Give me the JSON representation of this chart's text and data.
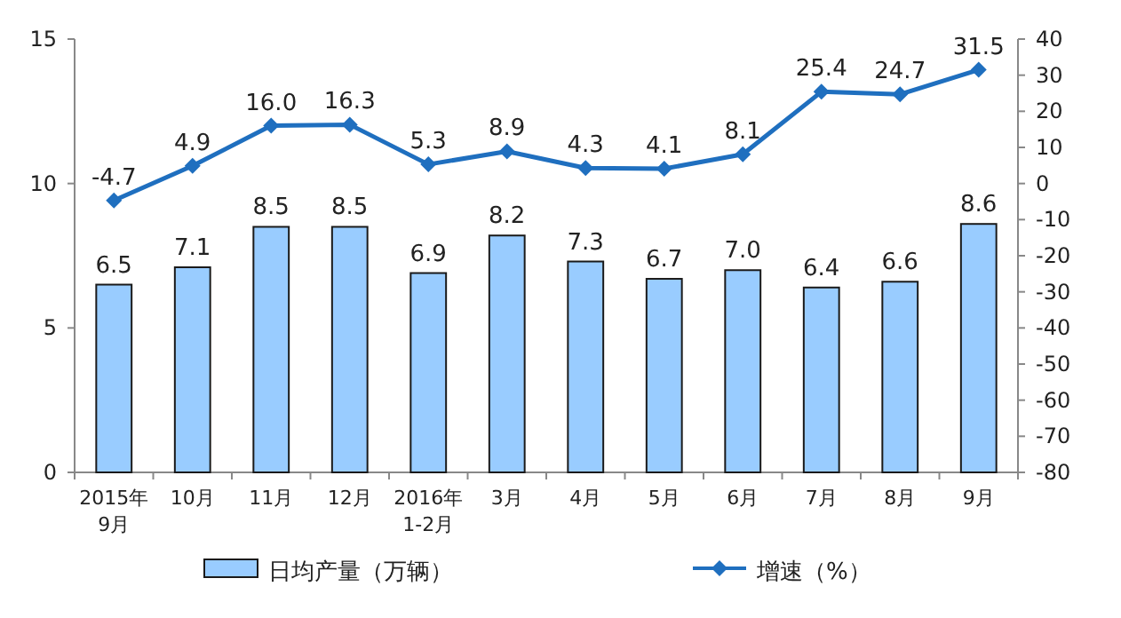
{
  "chart_data": {
    "type": "bar",
    "categories": [
      "2015年\n9月",
      "10月",
      "11月",
      "12月",
      "2016年\n1-2月",
      "3月",
      "4月",
      "5月",
      "6月",
      "7月",
      "8月",
      "9月"
    ],
    "series": [
      {
        "name": "日均产量（万辆）",
        "color": "#99ccff",
        "values": [
          6.5,
          7.1,
          8.5,
          8.5,
          6.9,
          8.2,
          7.3,
          6.7,
          7.0,
          6.4,
          6.6,
          8.6
        ],
        "value_labels": [
          "6.5",
          "7.1",
          "8.5",
          "8.5",
          "6.9",
          "8.2",
          "7.3",
          "6.7",
          "7.0",
          "6.4",
          "6.6",
          "8.6"
        ]
      },
      {
        "name": "增速（%）",
        "type": "line",
        "axis": "y2",
        "color": "#1f6fbf",
        "marker": "diamond",
        "values": [
          -4.7,
          4.9,
          16.0,
          16.3,
          5.3,
          8.9,
          4.3,
          4.1,
          8.1,
          25.4,
          24.7,
          31.5
        ],
        "value_labels": [
          "-4.7",
          "4.9",
          "16.0",
          "16.3",
          "5.3",
          "8.9",
          "4.3",
          "4.1",
          "8.1",
          "25.4",
          "24.7",
          "31.5"
        ]
      }
    ],
    "ylim": [
      0,
      15
    ],
    "yticks": [
      0,
      5,
      10,
      15
    ],
    "y2lim": [
      -80,
      40
    ],
    "y2ticks": [
      -80,
      -70,
      -60,
      -50,
      -40,
      -30,
      -20,
      -10,
      0,
      10,
      20,
      30,
      40
    ],
    "legend": "bottom",
    "grid": false
  }
}
